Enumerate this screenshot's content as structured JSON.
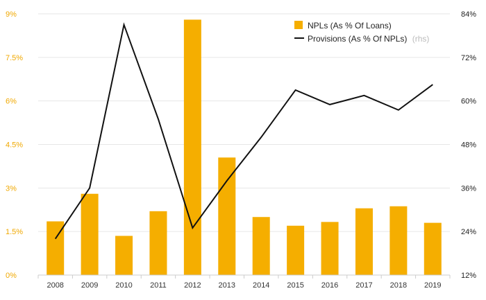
{
  "colors": {
    "bar": "#f5ae00",
    "line": "#111111",
    "left_axis_text": "#f0a800",
    "right_axis_text": "#222222",
    "grid": "#e6e6e6",
    "legend_suffix": "#bbbbbb"
  },
  "chart_data": {
    "type": "bar+line",
    "categories": [
      "2008",
      "2009",
      "2010",
      "2011",
      "2012",
      "2013",
      "2014",
      "2015",
      "2016",
      "2017",
      "2018",
      "2019"
    ],
    "series": [
      {
        "name": "NPLs (As % Of Loans)",
        "type": "bar",
        "axis": "left",
        "values": [
          1.85,
          2.8,
          1.35,
          2.2,
          8.8,
          4.05,
          2.0,
          1.7,
          1.83,
          2.3,
          2.37,
          1.8
        ]
      },
      {
        "name": "Provisions (As % Of NPLs)",
        "type": "line",
        "axis": "right",
        "values": [
          22,
          36,
          81,
          55,
          25,
          38,
          50,
          63,
          59,
          61.5,
          57.5,
          64.5
        ]
      }
    ],
    "left_axis": {
      "min": 0,
      "max": 9,
      "ticks": [
        0,
        1.5,
        3,
        4.5,
        6,
        7.5,
        9
      ],
      "tick_labels": [
        "0%",
        "1.5%",
        "3%",
        "4.5%",
        "6%",
        "7.5%",
        "9%"
      ]
    },
    "right_axis": {
      "min": 12,
      "max": 84,
      "ticks": [
        12,
        24,
        36,
        48,
        60,
        72,
        84
      ],
      "tick_labels": [
        "12%",
        "24%",
        "36%",
        "48%",
        "60%",
        "72%",
        "84%"
      ]
    },
    "legend": {
      "position": "top-right",
      "items": [
        {
          "label": "NPLs (As % Of Loans)",
          "marker": "square"
        },
        {
          "label": "Provisions (As % Of NPLs)",
          "suffix": "(rhs)",
          "marker": "line"
        }
      ]
    },
    "grid": "horizontal"
  }
}
